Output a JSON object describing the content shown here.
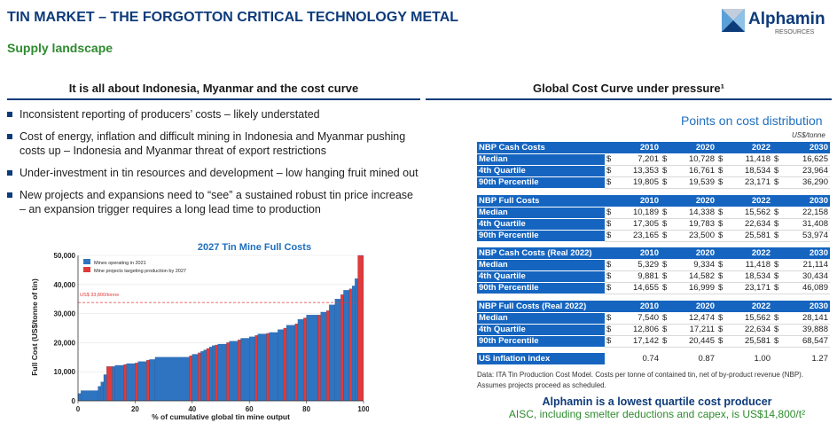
{
  "header": {
    "title": "TIN MARKET – THE FORGOTTON CRITICAL TECHNOLOGY METAL",
    "subtitle": "Supply landscape",
    "logo_name": "Alphamin",
    "logo_tagline": "RESOURCES"
  },
  "left": {
    "heading": "It is all about Indonesia, Myanmar and the cost curve",
    "bullets": [
      "Inconsistent reporting of producers’ costs – likely understated",
      "Cost of energy, inflation and difficult mining in Indonesia and Myanmar pushing costs up – Indonesia and Myanmar threat of export restrictions",
      "Under-investment in tin resources and development – low hanging fruit mined out",
      "New projects and expansions need to “see” a sustained robust tin price increase – an expansion trigger requires a long lead time to production"
    ]
  },
  "right": {
    "heading": "Global Cost Curve under pressure¹",
    "points_title": "Points on cost distribution",
    "unit": "US$/tonne",
    "years": [
      "2010",
      "2020",
      "2022",
      "2030"
    ],
    "currency": "$",
    "tables": [
      {
        "title": "NBP Cash Costs",
        "rows": [
          {
            "label": "Median",
            "values": [
              "7,201",
              "10,728",
              "11,418",
              "16,625"
            ]
          },
          {
            "label": "4th Quartile",
            "values": [
              "13,353",
              "16,761",
              "18,534",
              "23,964"
            ]
          },
          {
            "label": "90th Percentile",
            "values": [
              "19,805",
              "19,539",
              "23,171",
              "36,290"
            ]
          }
        ]
      },
      {
        "title": "NBP Full Costs",
        "rows": [
          {
            "label": "Median",
            "values": [
              "10,189",
              "14,338",
              "15,562",
              "22,158"
            ]
          },
          {
            "label": "4th Quartile",
            "values": [
              "17,305",
              "19,783",
              "22,634",
              "31,408"
            ]
          },
          {
            "label": "90th Percentile",
            "values": [
              "23,165",
              "23,500",
              "25,581",
              "53,974"
            ]
          }
        ]
      },
      {
        "title": "NBP Cash Costs (Real 2022)",
        "rows": [
          {
            "label": "Median",
            "values": [
              "5,329",
              "9,334",
              "11,418",
              "21,114"
            ]
          },
          {
            "label": "4th Quartile",
            "values": [
              "9,881",
              "14,582",
              "18,534",
              "30,434"
            ]
          },
          {
            "label": "90th Percentile",
            "values": [
              "14,655",
              "16,999",
              "23,171",
              "46,089"
            ]
          }
        ]
      },
      {
        "title": "NBP Full Costs (Real 2022)",
        "rows": [
          {
            "label": "Median",
            "values": [
              "7,540",
              "12,474",
              "15,562",
              "28,141"
            ]
          },
          {
            "label": "4th Quartile",
            "values": [
              "12,806",
              "17,211",
              "22,634",
              "39,888"
            ]
          },
          {
            "label": "90th Percentile",
            "values": [
              "17,142",
              "20,445",
              "25,581",
              "68,547"
            ]
          }
        ]
      }
    ],
    "inflation": {
      "label": "US inflation index",
      "values": [
        "0.74",
        "0.87",
        "1.00",
        "1.27"
      ]
    },
    "footnote": "Data: ITA Tin Production Cost Model. Costs per tonne of contained tin, net of by-product revenue (NBP). Assumes projects proceed as scheduled.",
    "producer_note": "Alphamin is a lowest quartile cost producer",
    "aisc_note": "AISC, including smelter deductions and capex, is US$14,800/t²"
  },
  "colors": {
    "navy": "#0d3b7a",
    "green": "#2e8b2e",
    "table_blue": "#1565c0",
    "operating": "#2f74c0",
    "projects": "#e03a3a"
  },
  "chart_data": {
    "type": "bar",
    "title": "2027 Tin Mine Full Costs",
    "xlabel": "% of cumulative global tin mine output",
    "ylabel": "Full Cost (US$/tonne of tin)",
    "xlim": [
      0,
      100
    ],
    "ylim": [
      0,
      50000
    ],
    "xticks": [
      0,
      20,
      40,
      60,
      80,
      100
    ],
    "yticks": [
      "0",
      "10,000",
      "20,000",
      "30,000",
      "40,000",
      "50,000"
    ],
    "legend": [
      "Mines operating in 2021",
      "Mine projects targeting production by 2027"
    ],
    "legend_placement": "top-left",
    "reference_line": {
      "label": "US$ 33,800/tonne",
      "value": 33800
    },
    "segments": [
      {
        "x0": 0,
        "x1": 1,
        "y": 2500,
        "s": 0
      },
      {
        "x0": 1,
        "x1": 7,
        "y": 3500,
        "s": 0
      },
      {
        "x0": 7,
        "x1": 8,
        "y": 5000,
        "s": 0
      },
      {
        "x0": 8,
        "x1": 9,
        "y": 6500,
        "s": 0
      },
      {
        "x0": 9,
        "x1": 10,
        "y": 9000,
        "s": 0
      },
      {
        "x0": 10,
        "x1": 12,
        "y": 11800,
        "s": 1
      },
      {
        "x0": 12,
        "x1": 13,
        "y": 11800,
        "s": 0
      },
      {
        "x0": 13,
        "x1": 16,
        "y": 12200,
        "s": 0
      },
      {
        "x0": 16,
        "x1": 17,
        "y": 12500,
        "s": 1
      },
      {
        "x0": 17,
        "x1": 20,
        "y": 12800,
        "s": 0
      },
      {
        "x0": 20,
        "x1": 21,
        "y": 13000,
        "s": 1
      },
      {
        "x0": 21,
        "x1": 24,
        "y": 13500,
        "s": 0
      },
      {
        "x0": 24,
        "x1": 25,
        "y": 14000,
        "s": 1
      },
      {
        "x0": 25,
        "x1": 27,
        "y": 14200,
        "s": 0
      },
      {
        "x0": 27,
        "x1": 39,
        "y": 15000,
        "s": 0
      },
      {
        "x0": 39,
        "x1": 40,
        "y": 15500,
        "s": 1
      },
      {
        "x0": 40,
        "x1": 42,
        "y": 16000,
        "s": 0
      },
      {
        "x0": 42,
        "x1": 43,
        "y": 16500,
        "s": 1
      },
      {
        "x0": 43,
        "x1": 44,
        "y": 17000,
        "s": 0
      },
      {
        "x0": 44,
        "x1": 45,
        "y": 17500,
        "s": 0
      },
      {
        "x0": 45,
        "x1": 46,
        "y": 18000,
        "s": 1
      },
      {
        "x0": 46,
        "x1": 47,
        "y": 18500,
        "s": 0
      },
      {
        "x0": 47,
        "x1": 48,
        "y": 19000,
        "s": 0
      },
      {
        "x0": 48,
        "x1": 49,
        "y": 19200,
        "s": 1
      },
      {
        "x0": 49,
        "x1": 52,
        "y": 19500,
        "s": 0
      },
      {
        "x0": 52,
        "x1": 53,
        "y": 20000,
        "s": 1
      },
      {
        "x0": 53,
        "x1": 56,
        "y": 20500,
        "s": 0
      },
      {
        "x0": 56,
        "x1": 57,
        "y": 21000,
        "s": 1
      },
      {
        "x0": 57,
        "x1": 60,
        "y": 21500,
        "s": 0
      },
      {
        "x0": 60,
        "x1": 62,
        "y": 22000,
        "s": 0
      },
      {
        "x0": 62,
        "x1": 63,
        "y": 22500,
        "s": 1
      },
      {
        "x0": 63,
        "x1": 66,
        "y": 23000,
        "s": 0
      },
      {
        "x0": 66,
        "x1": 67,
        "y": 23200,
        "s": 1
      },
      {
        "x0": 67,
        "x1": 70,
        "y": 23500,
        "s": 0
      },
      {
        "x0": 70,
        "x1": 72,
        "y": 24500,
        "s": 0
      },
      {
        "x0": 72,
        "x1": 73,
        "y": 25000,
        "s": 1
      },
      {
        "x0": 73,
        "x1": 76,
        "y": 26000,
        "s": 0
      },
      {
        "x0": 76,
        "x1": 77,
        "y": 26500,
        "s": 1
      },
      {
        "x0": 77,
        "x1": 79,
        "y": 28000,
        "s": 0
      },
      {
        "x0": 79,
        "x1": 80,
        "y": 28500,
        "s": 1
      },
      {
        "x0": 80,
        "x1": 84,
        "y": 29500,
        "s": 0
      },
      {
        "x0": 84,
        "x1": 85,
        "y": 29500,
        "s": 1
      },
      {
        "x0": 85,
        "x1": 87,
        "y": 30500,
        "s": 0
      },
      {
        "x0": 87,
        "x1": 88,
        "y": 31000,
        "s": 1
      },
      {
        "x0": 88,
        "x1": 90,
        "y": 33000,
        "s": 0
      },
      {
        "x0": 90,
        "x1": 92,
        "y": 35000,
        "s": 0
      },
      {
        "x0": 92,
        "x1": 93,
        "y": 36500,
        "s": 1
      },
      {
        "x0": 93,
        "x1": 95,
        "y": 38000,
        "s": 0
      },
      {
        "x0": 95,
        "x1": 96,
        "y": 38500,
        "s": 1
      },
      {
        "x0": 96,
        "x1": 97,
        "y": 39500,
        "s": 0
      },
      {
        "x0": 97,
        "x1": 98,
        "y": 42000,
        "s": 0
      },
      {
        "x0": 98,
        "x1": 100,
        "y": 50000,
        "s": 1
      }
    ]
  }
}
